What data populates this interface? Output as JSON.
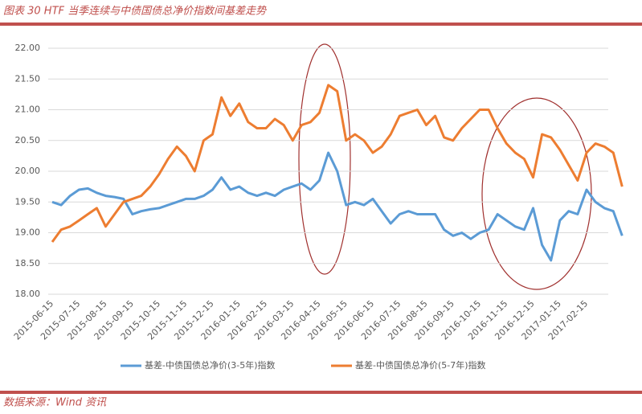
{
  "header": {
    "title": "图表 30 HTF 当季连续与中债国债总净价指数间基差走势"
  },
  "source": "数据来源：Wind 资讯",
  "chart_data": {
    "type": "line",
    "categories": [
      "2015-06-15",
      null,
      null,
      "2015-07-15",
      null,
      null,
      "2015-08-15",
      null,
      null,
      "2015-09-15",
      null,
      null,
      "2015-10-15",
      null,
      null,
      "2015-11-15",
      null,
      null,
      "2015-12-15",
      null,
      null,
      "2016-01-15",
      null,
      null,
      "2016-02-15",
      null,
      null,
      "2016-03-15",
      null,
      null,
      "2016-04-15",
      null,
      null,
      "2016-05-15",
      null,
      null,
      "2016-06-15",
      null,
      null,
      "2016-07-15",
      null,
      null,
      "2016-08-15",
      null,
      null,
      "2016-09-15",
      null,
      null,
      "2016-10-15",
      null,
      null,
      "2016-11-15",
      null,
      null,
      "2016-12-15",
      null,
      null,
      "2017-01-15",
      null,
      null,
      "2017-02-15",
      null,
      null,
      null,
      null
    ],
    "series": [
      {
        "name": "基差-中债国债总净价(3-5年)指数",
        "color": "#5b9bd5",
        "values": [
          19.5,
          19.45,
          19.6,
          19.7,
          19.72,
          19.65,
          19.6,
          19.58,
          19.55,
          19.3,
          19.35,
          19.38,
          19.4,
          19.45,
          19.5,
          19.55,
          19.55,
          19.6,
          19.7,
          19.9,
          19.7,
          19.75,
          19.65,
          19.6,
          19.65,
          19.6,
          19.7,
          19.75,
          19.8,
          19.7,
          19.85,
          20.3,
          20.0,
          19.45,
          19.5,
          19.45,
          19.55,
          19.35,
          19.15,
          19.3,
          19.35,
          19.3,
          19.3,
          19.3,
          19.05,
          18.95,
          19.0,
          18.9,
          19.0,
          19.05,
          19.3,
          19.2,
          19.1,
          19.05,
          19.4,
          18.8,
          18.55,
          19.2,
          19.35,
          19.3,
          19.7,
          19.5,
          19.4,
          19.35,
          18.95
        ]
      },
      {
        "name": "基差-中债国债总净价(5-7年)指数",
        "color": "#ed7d31",
        "values": [
          18.85,
          19.05,
          19.1,
          19.2,
          19.3,
          19.4,
          19.1,
          19.3,
          19.5,
          19.55,
          19.6,
          19.75,
          19.95,
          20.2,
          20.4,
          20.25,
          20.0,
          20.5,
          20.6,
          21.2,
          20.9,
          21.1,
          20.8,
          20.7,
          20.7,
          20.85,
          20.75,
          20.5,
          20.75,
          20.8,
          20.95,
          21.4,
          21.3,
          20.5,
          20.6,
          20.5,
          20.3,
          20.4,
          20.6,
          20.9,
          20.95,
          21.0,
          20.75,
          20.9,
          20.55,
          20.5,
          20.7,
          20.85,
          21.0,
          21.0,
          20.7,
          20.45,
          20.3,
          20.2,
          19.9,
          20.6,
          20.55,
          20.35,
          20.1,
          19.85,
          20.3,
          20.45,
          20.4,
          20.3,
          19.75
        ]
      }
    ],
    "ylim": [
      18,
      22
    ],
    "yticks": [
      {
        "value": 18,
        "label": "18.00"
      },
      {
        "value": 18.5,
        "label": "18.50"
      },
      {
        "value": 19,
        "label": "19.00"
      },
      {
        "value": 19.5,
        "label": "19.50"
      },
      {
        "value": 20,
        "label": "20.00"
      },
      {
        "value": 20.5,
        "label": "20.50"
      },
      {
        "value": 21,
        "label": "21.00"
      },
      {
        "value": 21.5,
        "label": "21.50"
      },
      {
        "value": 22,
        "label": "22.00"
      }
    ],
    "grid": true
  }
}
